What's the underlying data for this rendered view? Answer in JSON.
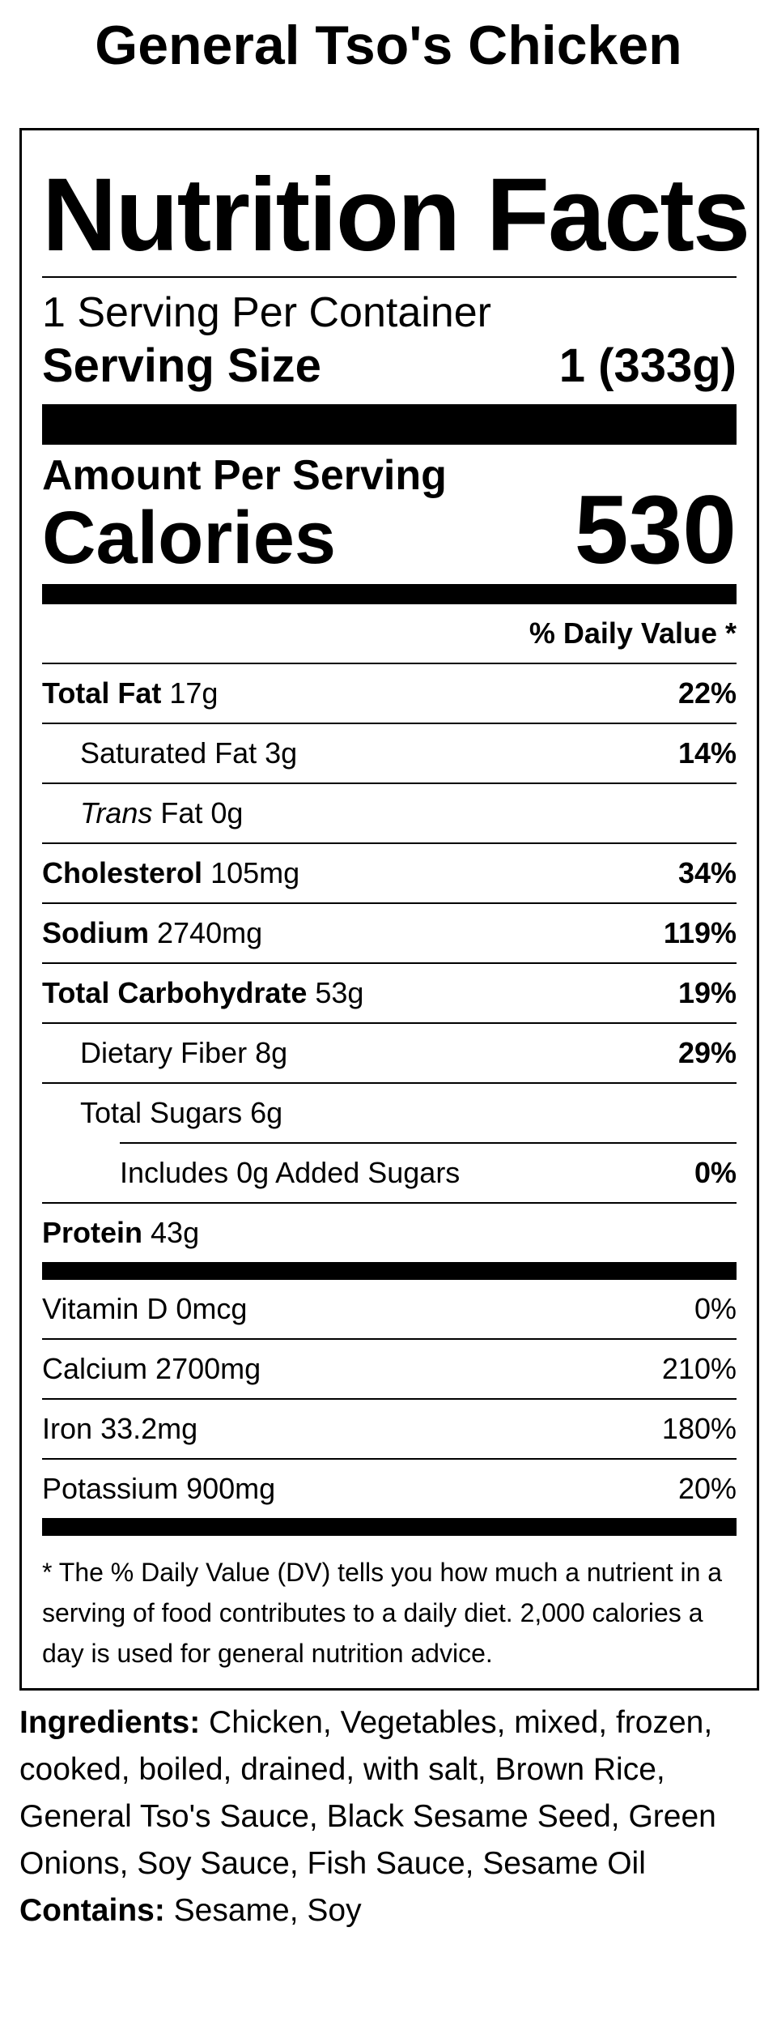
{
  "product": {
    "title": "General Tso's Chicken"
  },
  "label": {
    "heading": "Nutrition Facts",
    "servings_per_container": "1 Serving Per Container",
    "serving_size_label": "Serving Size",
    "serving_size_value": "1 (333g)",
    "amount_per_serving": "Amount Per Serving",
    "calories_label": "Calories",
    "calories_value": "530",
    "daily_value_header": "% Daily Value *",
    "nutrients": [
      {
        "name": "Total Fat",
        "amount": "17g",
        "dv": "22%"
      },
      {
        "name": "Saturated Fat",
        "amount": "3g",
        "dv": "14%"
      },
      {
        "name_italic": "Trans",
        "name": "Fat",
        "amount": "0g",
        "dv": ""
      },
      {
        "name": "Cholesterol",
        "amount": "105mg",
        "dv": "34%"
      },
      {
        "name": "Sodium",
        "amount": "2740mg",
        "dv": "119%"
      },
      {
        "name": "Total Carbohydrate",
        "amount": "53g",
        "dv": "19%"
      },
      {
        "name": "Dietary Fiber",
        "amount": "8g",
        "dv": "29%"
      },
      {
        "name": "Total Sugars",
        "amount": "6g",
        "dv": ""
      },
      {
        "name": "Includes 0g Added Sugars",
        "amount": "",
        "dv": "0%"
      },
      {
        "name": "Protein",
        "amount": "43g",
        "dv": ""
      }
    ],
    "vitamins": [
      {
        "name": "Vitamin D",
        "amount": "0mcg",
        "dv": "0%"
      },
      {
        "name": "Calcium",
        "amount": "2700mg",
        "dv": "210%"
      },
      {
        "name": "Iron",
        "amount": "33.2mg",
        "dv": "180%"
      },
      {
        "name": "Potassium",
        "amount": "900mg",
        "dv": "20%"
      }
    ],
    "footnote": "* The % Daily Value (DV) tells you how much a nutrient in a serving of food contributes to a daily diet. 2,000 calories a day is used for general nutrition advice."
  },
  "ingredients": {
    "label": "Ingredients:",
    "text": "Chicken, Vegetables, mixed, frozen, cooked, boiled, drained, with salt, Brown Rice, General Tso's Sauce, Black Sesame Seed, Green Onions, Soy Sauce, Fish Sauce, Sesame Oil",
    "contains_label": "Contains:",
    "contains_text": "Sesame, Soy"
  }
}
